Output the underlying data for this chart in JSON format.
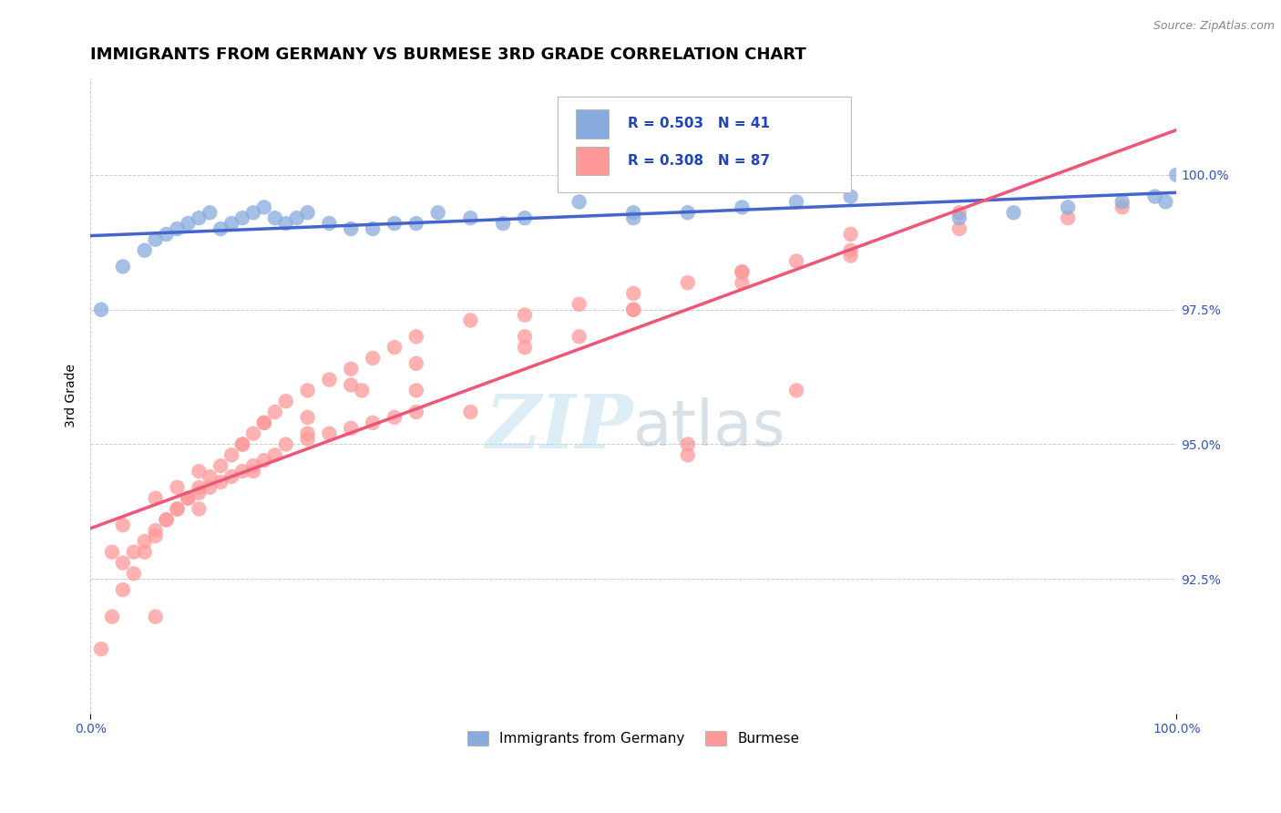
{
  "title": "IMMIGRANTS FROM GERMANY VS BURMESE 3RD GRADE CORRELATION CHART",
  "source_text": "Source: ZipAtlas.com",
  "ylabel": "3rd Grade",
  "xlim": [
    0.0,
    100.0
  ],
  "ylim": [
    90.0,
    101.8
  ],
  "ytick_positions": [
    92.5,
    95.0,
    97.5,
    100.0
  ],
  "yticklabels": [
    "92.5%",
    "95.0%",
    "97.5%",
    "100.0%"
  ],
  "xtick_positions": [
    0,
    100
  ],
  "xticklabels": [
    "0.0%",
    "100.0%"
  ],
  "legend_blue_label": "Immigrants from Germany",
  "legend_pink_label": "Burmese",
  "R_blue": 0.503,
  "N_blue": 41,
  "R_pink": 0.308,
  "N_pink": 87,
  "blue_color": "#88AADD",
  "pink_color": "#FF9999",
  "trend_blue_color": "#4466CC",
  "trend_pink_color": "#EE5577",
  "watermark_color": "#BBDDEE",
  "title_fontsize": 13,
  "axis_label_fontsize": 10,
  "tick_fontsize": 10,
  "annotation_fontsize": 11,
  "blue_scatter_x": [
    1,
    3,
    5,
    6,
    7,
    8,
    9,
    10,
    11,
    12,
    13,
    14,
    15,
    16,
    17,
    18,
    19,
    20,
    22,
    24,
    26,
    28,
    30,
    32,
    35,
    38,
    40,
    45,
    50,
    55,
    60,
    65,
    70,
    80,
    85,
    90,
    95,
    98,
    99,
    100,
    50
  ],
  "blue_scatter_y": [
    97.5,
    98.3,
    98.6,
    98.8,
    98.9,
    99.0,
    99.1,
    99.2,
    99.3,
    99.0,
    99.1,
    99.2,
    99.3,
    99.4,
    99.2,
    99.1,
    99.2,
    99.3,
    99.1,
    99.0,
    99.0,
    99.1,
    99.1,
    99.3,
    99.2,
    99.1,
    99.2,
    99.5,
    99.2,
    99.3,
    99.4,
    99.5,
    99.6,
    99.2,
    99.3,
    99.4,
    99.5,
    99.6,
    99.5,
    100.0,
    99.3
  ],
  "pink_scatter_x": [
    1,
    2,
    3,
    4,
    5,
    6,
    7,
    8,
    9,
    10,
    11,
    12,
    13,
    14,
    15,
    16,
    17,
    18,
    20,
    22,
    24,
    26,
    28,
    30,
    35,
    3,
    4,
    5,
    6,
    7,
    8,
    9,
    10,
    11,
    12,
    13,
    14,
    15,
    16,
    17,
    18,
    20,
    22,
    24,
    26,
    28,
    30,
    40,
    45,
    50,
    55,
    60,
    65,
    70,
    3,
    6,
    10,
    14,
    20,
    25,
    30,
    40,
    50,
    60,
    70,
    80,
    90,
    95,
    2,
    8,
    16,
    24,
    35,
    55,
    65,
    45,
    6,
    10,
    15,
    20,
    30,
    40,
    50,
    60,
    70,
    80,
    55
  ],
  "pink_scatter_y": [
    91.2,
    91.8,
    92.3,
    92.6,
    93.0,
    93.3,
    93.6,
    93.8,
    94.0,
    94.1,
    94.2,
    94.3,
    94.4,
    94.5,
    94.6,
    94.7,
    94.8,
    95.0,
    95.1,
    95.2,
    95.3,
    95.4,
    95.5,
    95.6,
    95.6,
    92.8,
    93.0,
    93.2,
    93.4,
    93.6,
    93.8,
    94.0,
    94.2,
    94.4,
    94.6,
    94.8,
    95.0,
    95.2,
    95.4,
    95.6,
    95.8,
    96.0,
    96.2,
    96.4,
    96.6,
    96.8,
    97.0,
    97.4,
    97.6,
    97.8,
    98.0,
    98.2,
    98.4,
    98.6,
    93.5,
    94.0,
    94.5,
    95.0,
    95.5,
    96.0,
    96.5,
    97.0,
    97.5,
    98.0,
    98.5,
    99.0,
    99.2,
    99.4,
    93.0,
    94.2,
    95.4,
    96.1,
    97.3,
    95.0,
    96.0,
    97.0,
    91.8,
    93.8,
    94.5,
    95.2,
    96.0,
    96.8,
    97.5,
    98.2,
    98.9,
    99.3,
    94.8
  ]
}
